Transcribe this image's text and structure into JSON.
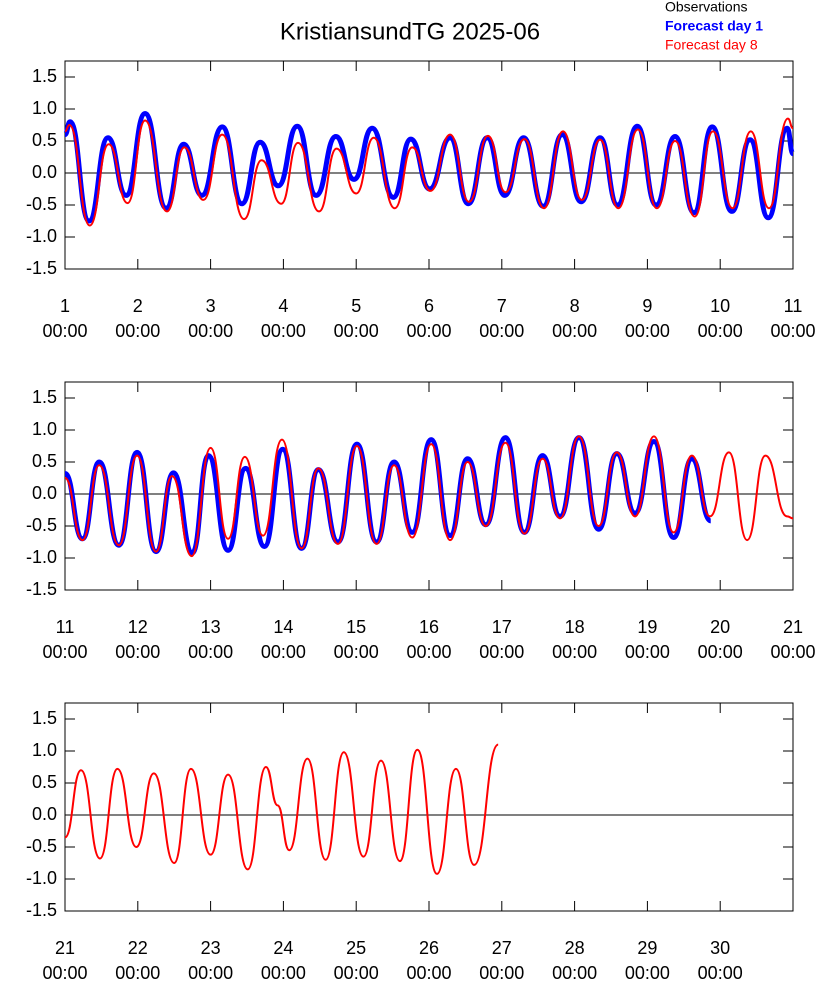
{
  "chart_data": [
    {
      "type": "line",
      "title": "KristiansundTG 2025-06",
      "legend": "top-right",
      "series": [
        {
          "name": "Observations",
          "color": "#000000",
          "x": [],
          "values": []
        },
        {
          "name": "Forecast day 1",
          "color": "#0000ff",
          "x": [
            1.0,
            1.07,
            1.33,
            1.59,
            1.84,
            2.1,
            2.39,
            2.63,
            2.88,
            3.16,
            3.43,
            3.68,
            3.93,
            4.19,
            4.45,
            4.72,
            4.97,
            5.22,
            5.51,
            5.75,
            6.01,
            6.29,
            6.54,
            6.8,
            7.04,
            7.3,
            7.57,
            7.83,
            8.09,
            8.35,
            8.59,
            8.86,
            9.12,
            9.38,
            9.64,
            9.89,
            10.16,
            10.41,
            10.66,
            10.92,
            11.0
          ],
          "values": [
            0.6,
            0.8,
            -0.75,
            0.55,
            -0.35,
            0.93,
            -0.55,
            0.45,
            -0.35,
            0.72,
            -0.48,
            0.48,
            -0.2,
            0.73,
            -0.35,
            0.57,
            -0.1,
            0.7,
            -0.38,
            0.53,
            -0.25,
            0.55,
            -0.48,
            0.55,
            -0.35,
            0.55,
            -0.52,
            0.6,
            -0.45,
            0.55,
            -0.5,
            0.73,
            -0.5,
            0.57,
            -0.62,
            0.72,
            -0.6,
            0.52,
            -0.7,
            0.7,
            0.3
          ]
        },
        {
          "name": "Forecast day 8",
          "color": "#ff0000",
          "x": [
            1.0,
            1.06,
            1.34,
            1.6,
            1.86,
            2.1,
            2.4,
            2.64,
            2.9,
            3.16,
            3.46,
            3.7,
            3.97,
            4.2,
            4.49,
            4.73,
            5.0,
            5.24,
            5.53,
            5.77,
            6.02,
            6.29,
            6.55,
            6.81,
            7.05,
            7.31,
            7.58,
            7.84,
            8.1,
            8.35,
            8.6,
            8.87,
            9.13,
            9.38,
            9.65,
            9.9,
            10.17,
            10.42,
            10.67,
            10.93,
            11.0
          ],
          "values": [
            0.65,
            0.75,
            -0.82,
            0.45,
            -0.47,
            0.82,
            -0.6,
            0.4,
            -0.42,
            0.6,
            -0.72,
            0.2,
            -0.48,
            0.47,
            -0.6,
            0.38,
            -0.32,
            0.55,
            -0.55,
            0.4,
            -0.28,
            0.6,
            -0.45,
            0.58,
            -0.3,
            0.53,
            -0.55,
            0.65,
            -0.42,
            0.52,
            -0.55,
            0.68,
            -0.55,
            0.5,
            -0.68,
            0.65,
            -0.55,
            0.65,
            -0.55,
            0.85,
            0.7
          ]
        }
      ],
      "xlim": [
        1,
        11
      ],
      "xticks": [
        {
          "value": 1,
          "label": "1",
          "time": "00:00"
        },
        {
          "value": 2,
          "label": "2",
          "time": "00:00"
        },
        {
          "value": 3,
          "label": "3",
          "time": "00:00"
        },
        {
          "value": 4,
          "label": "4",
          "time": "00:00"
        },
        {
          "value": 5,
          "label": "5",
          "time": "00:00"
        },
        {
          "value": 6,
          "label": "6",
          "time": "00:00"
        },
        {
          "value": 7,
          "label": "7",
          "time": "00:00"
        },
        {
          "value": 8,
          "label": "8",
          "time": "00:00"
        },
        {
          "value": 9,
          "label": "9",
          "time": "00:00"
        },
        {
          "value": 10,
          "label": "10",
          "time": "00:00"
        },
        {
          "value": 11,
          "label": "11",
          "time": "00:00"
        }
      ],
      "ylim": [
        -1.5,
        1.75
      ],
      "yticks": [
        {
          "value": -1.5,
          "label": "-1.5"
        },
        {
          "value": -1,
          "label": "-1.0"
        },
        {
          "value": -0.5,
          "label": "-0.5"
        },
        {
          "value": 0,
          "label": "0.0"
        },
        {
          "value": 0.5,
          "label": "0.5"
        },
        {
          "value": 1,
          "label": "1.0"
        },
        {
          "value": 1.5,
          "label": "1.5"
        }
      ]
    },
    {
      "type": "line",
      "series": [
        {
          "color": "#0000ff",
          "x": [
            11.0,
            11.24,
            11.47,
            11.74,
            11.99,
            12.25,
            12.49,
            12.75,
            12.97,
            13.24,
            13.48,
            13.74,
            13.99,
            14.25,
            14.48,
            14.75,
            15.01,
            15.28,
            15.52,
            15.77,
            16.03,
            16.29,
            16.53,
            16.78,
            17.05,
            17.31,
            17.56,
            17.8,
            18.06,
            18.33,
            18.58,
            18.83,
            19.09,
            19.36,
            19.61,
            19.87
          ],
          "values": [
            0.32,
            -0.7,
            0.5,
            -0.8,
            0.65,
            -0.9,
            0.33,
            -0.92,
            0.6,
            -0.88,
            0.4,
            -0.82,
            0.7,
            -0.85,
            0.38,
            -0.75,
            0.78,
            -0.75,
            0.5,
            -0.6,
            0.85,
            -0.65,
            0.55,
            -0.48,
            0.88,
            -0.6,
            0.6,
            -0.35,
            0.88,
            -0.55,
            0.63,
            -0.3,
            0.82,
            -0.68,
            0.55,
            -0.42
          ]
        },
        {
          "color": "#ff0000",
          "x": [
            11.0,
            11.24,
            11.47,
            11.74,
            11.99,
            12.25,
            12.47,
            12.74,
            13.0,
            13.24,
            13.47,
            13.72,
            13.98,
            14.25,
            14.48,
            14.75,
            15.01,
            15.28,
            15.52,
            15.77,
            16.03,
            16.29,
            16.53,
            16.78,
            17.05,
            17.31,
            17.56,
            17.8,
            18.06,
            18.33,
            18.58,
            18.83,
            19.09,
            19.36,
            19.61,
            19.86,
            20.12,
            20.37,
            20.62,
            20.92,
            21.0
          ],
          "values": [
            0.25,
            -0.72,
            0.45,
            -0.8,
            0.6,
            -0.9,
            0.28,
            -0.97,
            0.72,
            -0.7,
            0.58,
            -0.65,
            0.85,
            -0.85,
            0.4,
            -0.78,
            0.75,
            -0.78,
            0.45,
            -0.68,
            0.78,
            -0.72,
            0.5,
            -0.5,
            0.8,
            -0.62,
            0.55,
            -0.38,
            0.9,
            -0.5,
            0.65,
            -0.35,
            0.9,
            -0.6,
            0.6,
            -0.35,
            0.65,
            -0.72,
            0.6,
            -0.35,
            -0.38
          ]
        }
      ],
      "xlim": [
        11,
        21
      ],
      "xticks": [
        {
          "value": 11,
          "label": "11",
          "time": "00:00"
        },
        {
          "value": 12,
          "label": "12",
          "time": "00:00"
        },
        {
          "value": 13,
          "label": "13",
          "time": "00:00"
        },
        {
          "value": 14,
          "label": "14",
          "time": "00:00"
        },
        {
          "value": 15,
          "label": "15",
          "time": "00:00"
        },
        {
          "value": 16,
          "label": "16",
          "time": "00:00"
        },
        {
          "value": 17,
          "label": "17",
          "time": "00:00"
        },
        {
          "value": 18,
          "label": "18",
          "time": "00:00"
        },
        {
          "value": 19,
          "label": "19",
          "time": "00:00"
        },
        {
          "value": 20,
          "label": "20",
          "time": "00:00"
        },
        {
          "value": 21,
          "label": "21",
          "time": "00:00"
        }
      ],
      "ylim": [
        -1.5,
        1.75
      ],
      "yticks": [
        {
          "value": -1.5,
          "label": "-1.5"
        },
        {
          "value": -1,
          "label": "-1.0"
        },
        {
          "value": -0.5,
          "label": "-0.5"
        },
        {
          "value": 0,
          "label": "0.0"
        },
        {
          "value": 0.5,
          "label": "0.5"
        },
        {
          "value": 1,
          "label": "1.0"
        },
        {
          "value": 1.5,
          "label": "1.5"
        }
      ]
    },
    {
      "type": "line",
      "series": [
        {
          "color": "#ff0000",
          "x": [
            21.0,
            21.22,
            21.48,
            21.72,
            21.98,
            22.22,
            22.5,
            22.73,
            23.0,
            23.24,
            23.51,
            23.76,
            23.92,
            24.08,
            24.33,
            24.58,
            24.83,
            25.1,
            25.34,
            25.6,
            25.84,
            26.11,
            26.37,
            26.62,
            26.95
          ],
          "values": [
            -0.35,
            0.7,
            -0.68,
            0.72,
            -0.5,
            0.65,
            -0.75,
            0.72,
            -0.62,
            0.63,
            -0.85,
            0.75,
            0.15,
            -0.55,
            0.88,
            -0.7,
            0.98,
            -0.65,
            0.85,
            -0.72,
            1.02,
            -0.92,
            0.72,
            -0.78,
            1.1
          ]
        }
      ],
      "xlim": [
        21,
        31
      ],
      "xticks": [
        {
          "value": 21,
          "label": "21",
          "time": "00:00"
        },
        {
          "value": 22,
          "label": "22",
          "time": "00:00"
        },
        {
          "value": 23,
          "label": "23",
          "time": "00:00"
        },
        {
          "value": 24,
          "label": "24",
          "time": "00:00"
        },
        {
          "value": 25,
          "label": "25",
          "time": "00:00"
        },
        {
          "value": 26,
          "label": "26",
          "time": "00:00"
        },
        {
          "value": 27,
          "label": "27",
          "time": "00:00"
        },
        {
          "value": 28,
          "label": "28",
          "time": "00:00"
        },
        {
          "value": 29,
          "label": "29",
          "time": "00:00"
        },
        {
          "value": 30,
          "label": "30",
          "time": "00:00"
        }
      ],
      "ylim": [
        -1.5,
        1.75
      ],
      "yticks": [
        {
          "value": -1.5,
          "label": "-1.5"
        },
        {
          "value": -1,
          "label": "-1.0"
        },
        {
          "value": -0.5,
          "label": "-0.5"
        },
        {
          "value": 0,
          "label": "0.0"
        },
        {
          "value": 0.5,
          "label": "0.5"
        },
        {
          "value": 1,
          "label": "1.0"
        },
        {
          "value": 1.5,
          "label": "1.5"
        }
      ]
    }
  ]
}
